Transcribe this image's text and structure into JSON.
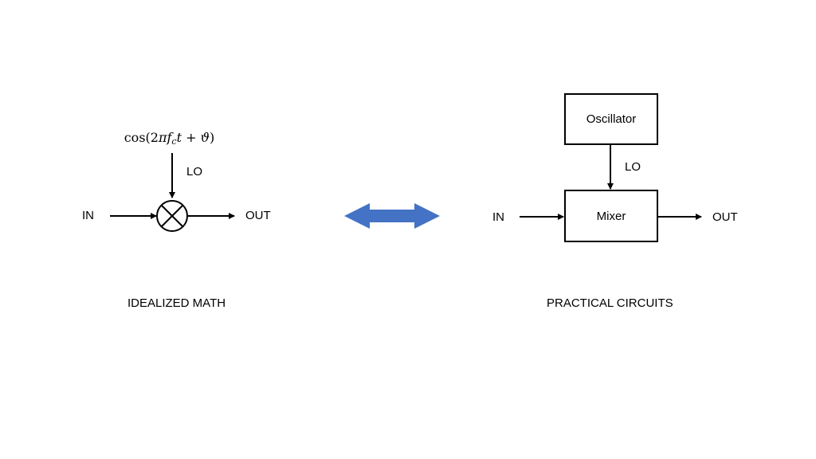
{
  "left": {
    "formula": {
      "prefix": "cos(2",
      "pi": "π",
      "f": "f",
      "sub": "c",
      "t": "t",
      "plus": " + ",
      "theta": "ϑ",
      "suffix": ")"
    },
    "lo_label": "LO",
    "in_label": "IN",
    "out_label": "OUT",
    "caption": "IDEALIZED MATH"
  },
  "right": {
    "oscillator_label": "Oscillator",
    "mixer_label": "Mixer",
    "lo_label": "LO",
    "in_label": "IN",
    "out_label": "OUT",
    "caption": "PRACTICAL CIRCUITS"
  },
  "colors": {
    "double_arrow": "#4472C4",
    "lines": "#000000"
  }
}
